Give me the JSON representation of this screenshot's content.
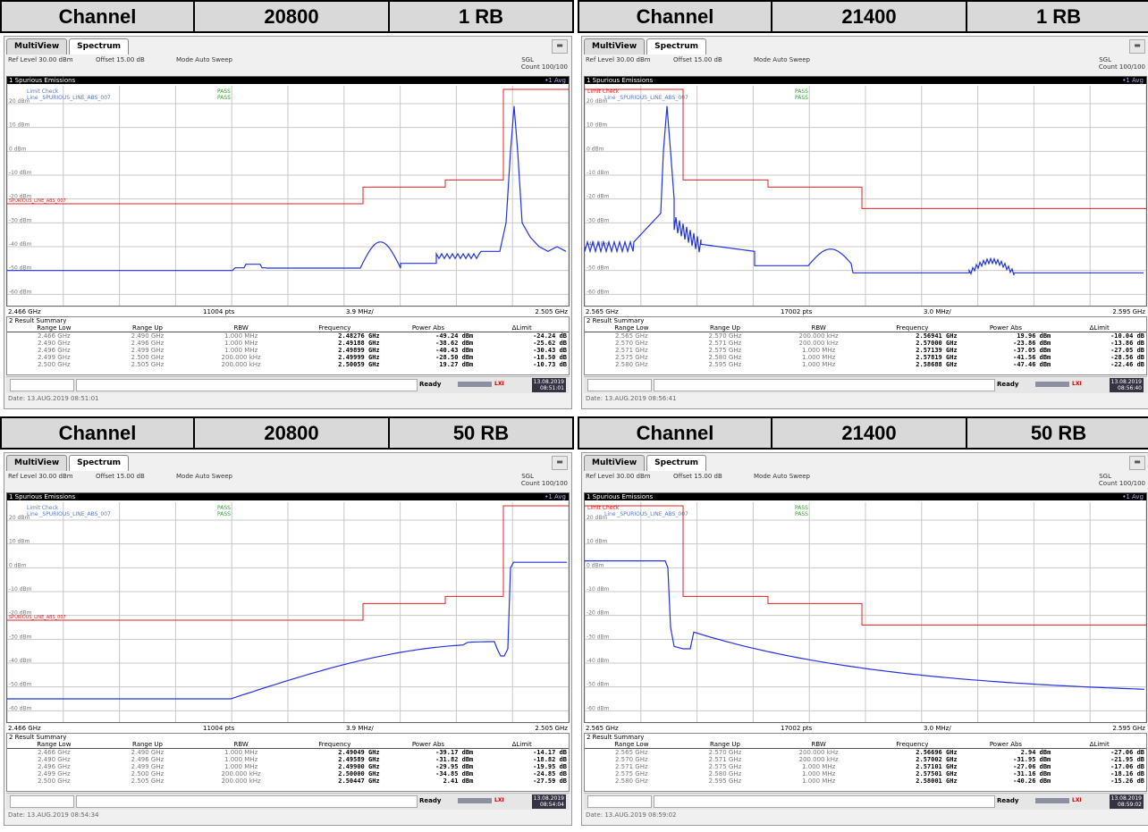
{
  "common": {
    "tab_multiview": "MultiView",
    "tab_spectrum": "Spectrum",
    "ref_level": "Ref Level 30.00 dBm",
    "offset": "Offset 15.00 dB",
    "mode": "Mode Auto Sweep",
    "sgl": "SGL",
    "count": "Count 100/100",
    "plot_title": "1 Spurious Emissions",
    "avg": "•1 Avg",
    "limit_check": "Limit Check",
    "pass1": "PASS",
    "line_label": "Line _SPURIOUS_LINE_ABS_007",
    "pass2": "PASS",
    "result_title": "2 Result Summary",
    "headers": [
      "Range Low",
      "Range Up",
      "RBW",
      "Frequency",
      "Power Abs",
      "ΔLimit"
    ],
    "ready": "Ready",
    "lxi": "LXI",
    "spur_line": "SPURIOUS_LINE_ABS_007",
    "y_labels": [
      "20 dBm",
      "10 dBm",
      "0 dBm",
      "-10 dBm",
      "-20 dBm",
      "-30 dBm",
      "-40 dBm",
      "-50 dBm",
      "-60 dBm"
    ],
    "colors": {
      "trace": "#2233dd",
      "limit": "#e02020",
      "grid": "#c8c8c8",
      "pass": "#22aa22",
      "label": "#5577cc"
    }
  },
  "panels": [
    {
      "header": {
        "c1": "Channel",
        "c2": "20800",
        "c3": "1 RB"
      },
      "axis": {
        "start": "2.466 GHz",
        "pts": "11004 pts",
        "div": "3.9 MHz/",
        "stop": "2.505 GHz"
      },
      "rows": [
        [
          "2.466 GHz",
          "2.490 GHz",
          "1.000 MHz",
          "2.48276 GHz",
          "-49.24 dBm",
          "-24.24 dB"
        ],
        [
          "2.490 GHz",
          "2.496 GHz",
          "1.000 MHz",
          "2.49188 GHz",
          "-38.62 dBm",
          "-25.62 dB"
        ],
        [
          "2.496 GHz",
          "2.499 GHz",
          "1.000 MHz",
          "2.49899 GHz",
          "-40.43 dBm",
          "-30.43 dB"
        ],
        [
          "2.499 GHz",
          "2.500 GHz",
          "200.000 kHz",
          "2.49999 GHz",
          "-28.50 dBm",
          "-18.50 dB"
        ],
        [
          "2.500 GHz",
          "2.505 GHz",
          "200.000 kHz",
          "2.50059 GHz",
          "19.27 dBm",
          "-10.73 dB"
        ]
      ],
      "ts_date": "13.08.2019",
      "ts_time": "08:51:01",
      "date": "Date: 13.AUG.2019 08:51:01"
    },
    {
      "header": {
        "c1": "Channel",
        "c2": "21400",
        "c3": "1 RB"
      },
      "axis": {
        "start": "2.565 GHz",
        "pts": "17002 pts",
        "div": "3.0 MHz/",
        "stop": "2.595 GHz"
      },
      "rows": [
        [
          "2.565 GHz",
          "2.570 GHz",
          "200.000 kHz",
          "2.56941 GHz",
          "19.96 dBm",
          "-10.04 dB"
        ],
        [
          "2.570 GHz",
          "2.571 GHz",
          "200.000 kHz",
          "2.57000 GHz",
          "-23.86 dBm",
          "-13.86 dB"
        ],
        [
          "2.571 GHz",
          "2.575 GHz",
          "1.000 MHz",
          "2.57139 GHz",
          "-37.05 dBm",
          "-27.05 dB"
        ],
        [
          "2.575 GHz",
          "2.580 GHz",
          "1.000 MHz",
          "2.57819 GHz",
          "-41.56 dBm",
          "-28.56 dB"
        ],
        [
          "2.580 GHz",
          "2.595 GHz",
          "1.000 MHz",
          "2.58688 GHz",
          "-47.46 dBm",
          "-22.46 dB"
        ]
      ],
      "ts_date": "13.08.2019",
      "ts_time": "08:56:40",
      "date": "Date: 13.AUG.2019 08:56:41"
    },
    {
      "header": {
        "c1": "Channel",
        "c2": "20800",
        "c3": "50 RB"
      },
      "axis": {
        "start": "2.466 GHz",
        "pts": "11004 pts",
        "div": "3.9 MHz/",
        "stop": "2.505 GHz"
      },
      "rows": [
        [
          "2.466 GHz",
          "2.490 GHz",
          "1.000 MHz",
          "2.49049 GHz",
          "-39.17 dBm",
          "-14.17 dB"
        ],
        [
          "2.490 GHz",
          "2.496 GHz",
          "1.000 MHz",
          "2.49589 GHz",
          "-31.82 dBm",
          "-18.82 dB"
        ],
        [
          "2.496 GHz",
          "2.499 GHz",
          "1.000 MHz",
          "2.49900 GHz",
          "-29.95 dBm",
          "-19.95 dB"
        ],
        [
          "2.499 GHz",
          "2.500 GHz",
          "200.000 kHz",
          "2.50000 GHz",
          "-34.85 dBm",
          "-24.85 dB"
        ],
        [
          "2.500 GHz",
          "2.505 GHz",
          "200.000 kHz",
          "2.50447 GHz",
          "2.41 dBm",
          "-27.59 dB"
        ]
      ],
      "ts_date": "13.08.2019",
      "ts_time": "08:54:04",
      "date": "Date: 13.AUG.2019 08:54:34"
    },
    {
      "header": {
        "c1": "Channel",
        "c2": "21400",
        "c3": "50 RB"
      },
      "axis": {
        "start": "2.565 GHz",
        "pts": "17002 pts",
        "div": "3.0 MHz/",
        "stop": "2.595 GHz"
      },
      "rows": [
        [
          "2.565 GHz",
          "2.570 GHz",
          "200.000 kHz",
          "2.56696 GHz",
          "2.94 dBm",
          "-27.06 dB"
        ],
        [
          "2.570 GHz",
          "2.571 GHz",
          "200.000 kHz",
          "2.57002 GHz",
          "-31.95 dBm",
          "-21.95 dB"
        ],
        [
          "2.571 GHz",
          "2.575 GHz",
          "1.000 MHz",
          "2.57101 GHz",
          "-27.06 dBm",
          "-17.06 dB"
        ],
        [
          "2.575 GHz",
          "2.580 GHz",
          "1.000 MHz",
          "2.57501 GHz",
          "-31.16 dBm",
          "-18.16 dB"
        ],
        [
          "2.580 GHz",
          "2.595 GHz",
          "1.000 MHz",
          "2.58001 GHz",
          "-40.26 dBm",
          "-15.26 dB"
        ]
      ],
      "ts_date": "13.08.2019",
      "ts_time": "08:59:02",
      "date": "Date: 13.AUG.2019 08:59:02"
    }
  ]
}
